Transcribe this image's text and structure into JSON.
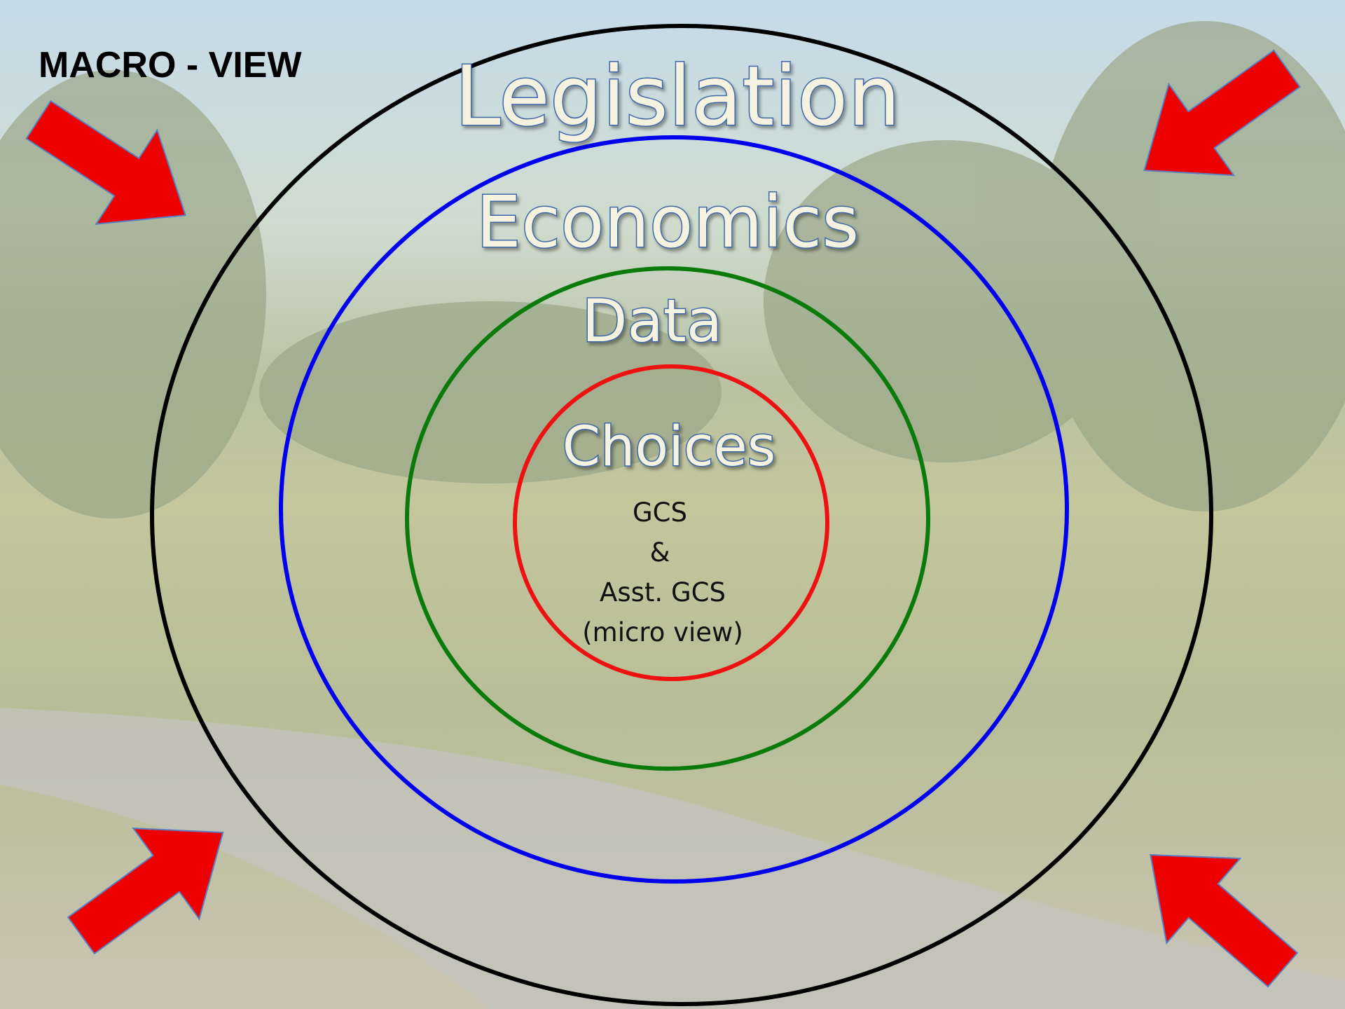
{
  "header": {
    "title": "MACRO - VIEW"
  },
  "rings": [
    {
      "label": "Legislation"
    },
    {
      "label": "Economics"
    },
    {
      "label": "Data"
    },
    {
      "label": "Choices"
    }
  ],
  "center": {
    "lines": [
      "GCS",
      "&",
      "Asst. GCS",
      "(micro view)"
    ]
  }
}
